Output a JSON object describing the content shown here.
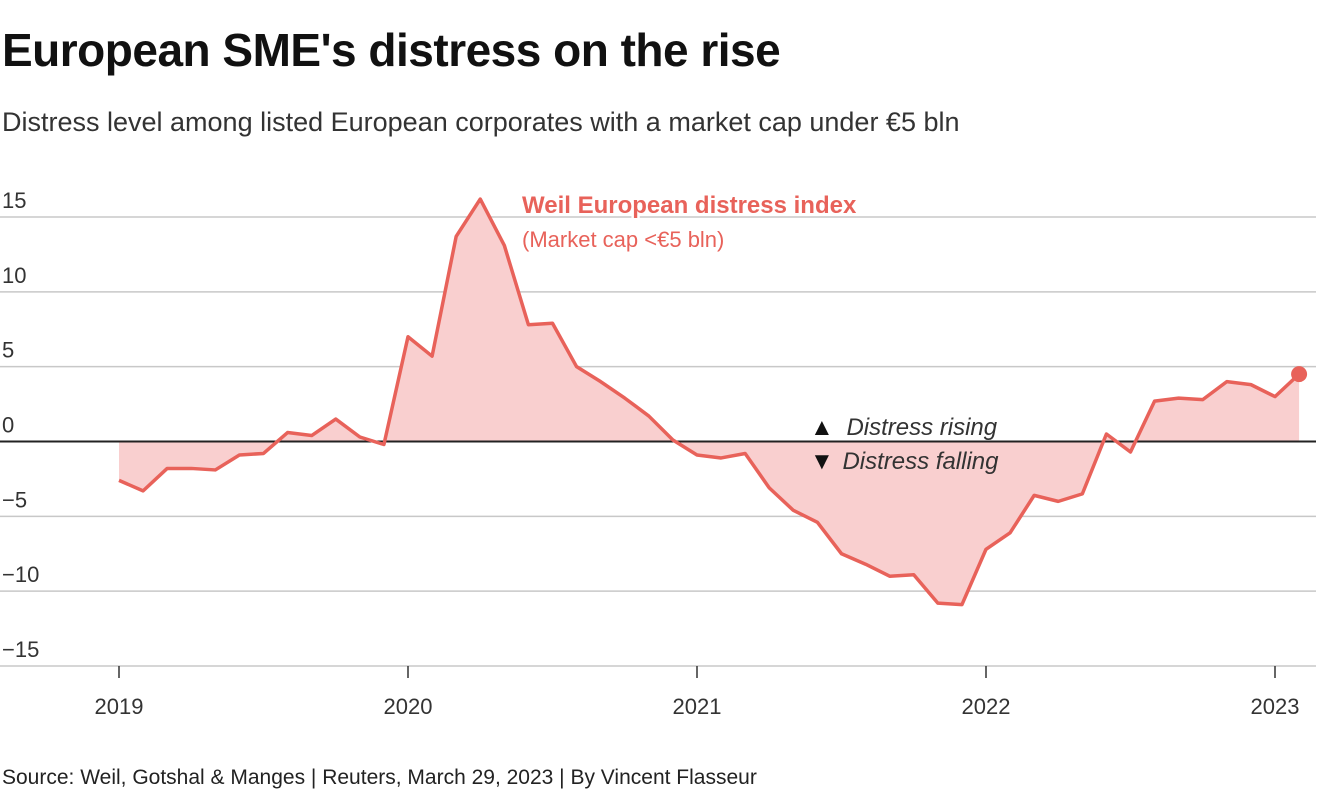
{
  "title": "European SME's distress on the rise",
  "subtitle": "Distress level among listed European corporates with a market cap under €5 bln",
  "source": "Source: Weil, Gotshal & Manges | Reuters, March 29, 2023 | By Vincent Flasseur",
  "colors": {
    "line": "#e8625a",
    "fill": "#f9cfcf",
    "grid": "#c8c8c8",
    "zero": "#222222",
    "text": "#333333"
  },
  "chart_data": {
    "type": "area",
    "title": "European SME's distress on the rise",
    "subtitle": "Distress level among listed European corporates with a market cap under €5 bln",
    "xlabel": "",
    "ylabel": "",
    "ylim": [
      -15,
      15
    ],
    "yticks": [
      15,
      10,
      5,
      0,
      -5,
      -10,
      -15
    ],
    "ytick_labels": [
      "15",
      "10",
      "5",
      "0",
      "−5",
      "−10",
      "−15"
    ],
    "xlim": [
      "2019-01",
      "2023-02"
    ],
    "xticks": [
      "2019",
      "2020",
      "2021",
      "2022",
      "2023"
    ],
    "grid": true,
    "legend": "none",
    "series": [
      {
        "name": "Weil European distress index",
        "subtitle": "(Market cap <€5 bln)",
        "x": [
          "2019-01",
          "2019-02",
          "2019-03",
          "2019-04",
          "2019-05",
          "2019-06",
          "2019-07",
          "2019-08",
          "2019-09",
          "2019-10",
          "2019-11",
          "2019-12",
          "2020-01",
          "2020-02",
          "2020-03",
          "2020-04",
          "2020-05",
          "2020-06",
          "2020-07",
          "2020-08",
          "2020-09",
          "2020-10",
          "2020-11",
          "2020-12",
          "2021-01",
          "2021-02",
          "2021-03",
          "2021-04",
          "2021-05",
          "2021-06",
          "2021-07",
          "2021-08",
          "2021-09",
          "2021-10",
          "2021-11",
          "2021-12",
          "2022-01",
          "2022-02",
          "2022-03",
          "2022-04",
          "2022-05",
          "2022-06",
          "2022-07",
          "2022-08",
          "2022-09",
          "2022-10",
          "2022-11",
          "2022-12",
          "2023-01",
          "2023-02"
        ],
        "values": [
          -2.6,
          -3.3,
          -1.8,
          -1.8,
          -1.9,
          -0.9,
          -0.8,
          0.6,
          0.4,
          1.5,
          0.3,
          -0.2,
          7.0,
          5.7,
          13.7,
          16.2,
          13.1,
          7.8,
          7.9,
          5.0,
          4.0,
          2.9,
          1.7,
          0.1,
          -0.9,
          -1.1,
          -0.8,
          -3.1,
          -4.6,
          -5.4,
          -7.5,
          -8.2,
          -9.0,
          -8.9,
          -10.8,
          -10.9,
          -7.2,
          -6.1,
          -3.6,
          -4.0,
          -3.5,
          0.5,
          -0.7,
          2.7,
          2.9,
          2.8,
          4.0,
          3.8,
          3.0,
          4.5
        ]
      }
    ],
    "annotations": [
      {
        "text": "Distress rising",
        "symbol": "▲"
      },
      {
        "text": "Distress falling",
        "symbol": "▼"
      }
    ]
  }
}
